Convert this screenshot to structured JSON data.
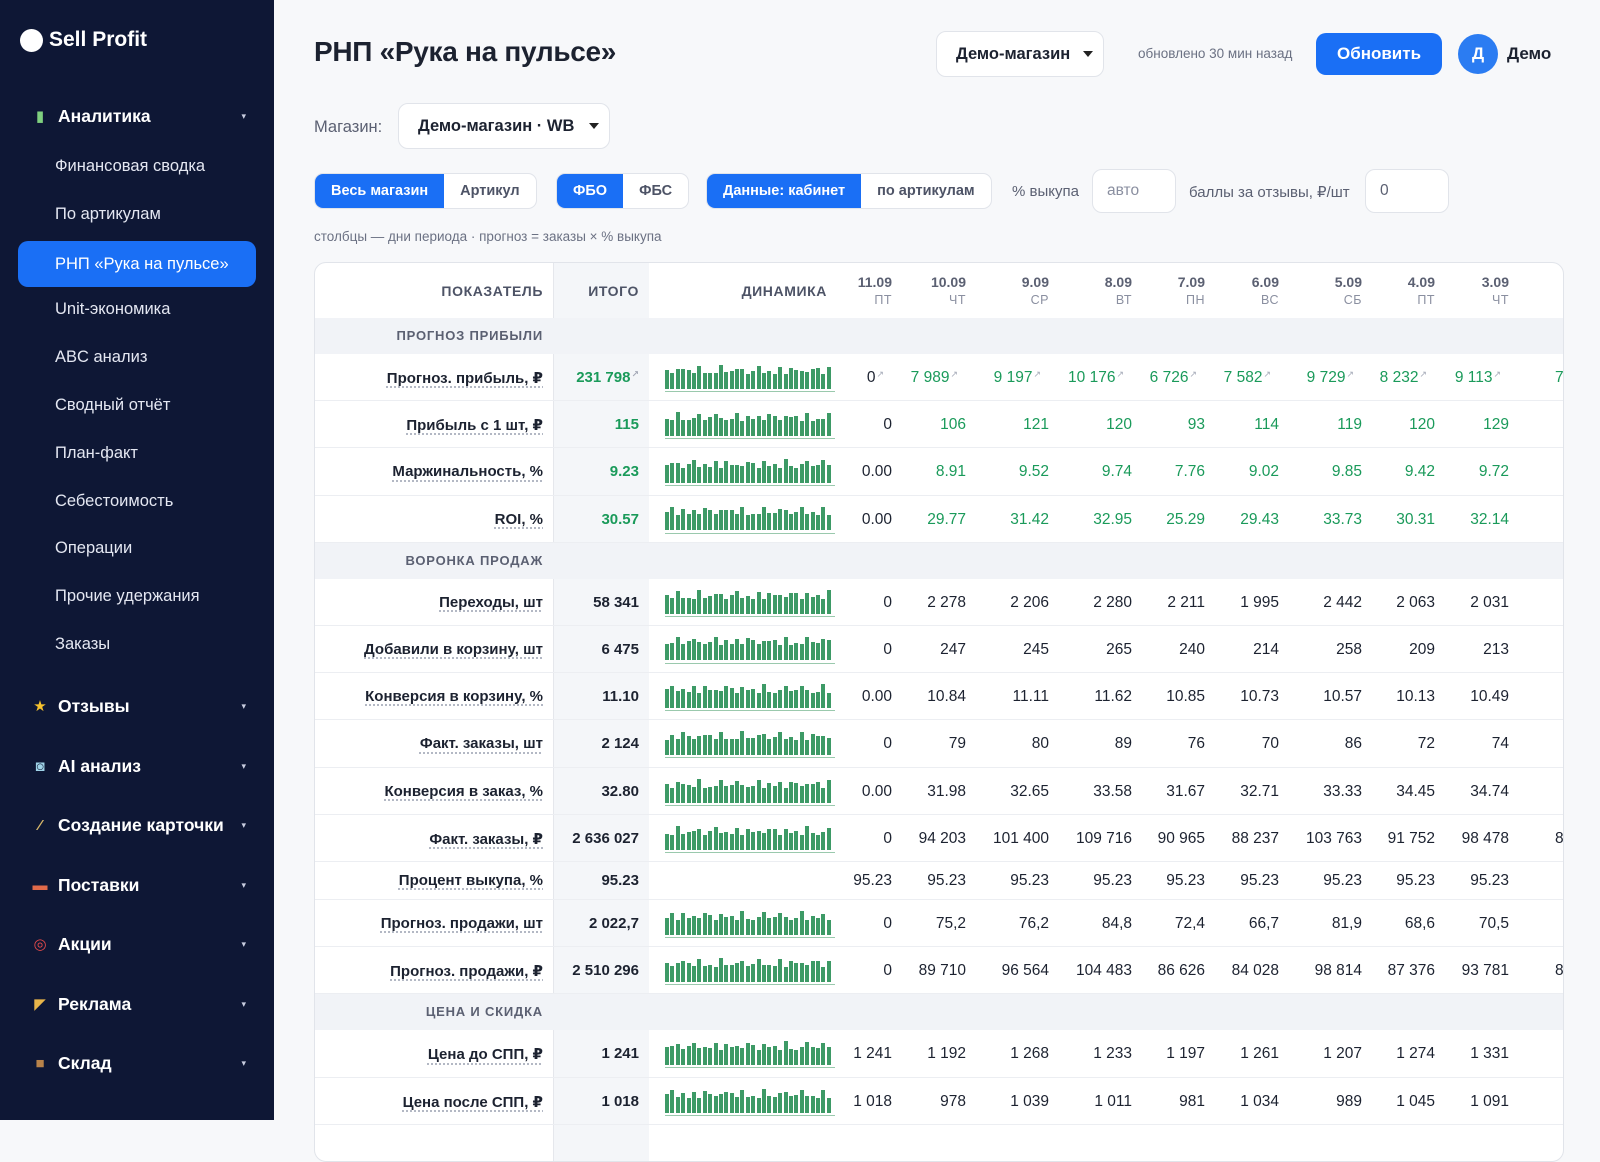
{
  "app": {
    "logo": "Sell Profit"
  },
  "sidebar": {
    "groups": [
      {
        "label": "Аналитика",
        "icon": "chart-icon",
        "expanded": true
      },
      {
        "label": "Отзывы",
        "icon": "star-icon"
      },
      {
        "label": "AI анализ",
        "icon": "robot-icon"
      },
      {
        "label": "Создание карточки",
        "icon": "magic-wand-icon"
      },
      {
        "label": "Поставки",
        "icon": "truck-icon"
      },
      {
        "label": "Акции",
        "icon": "target-icon"
      },
      {
        "label": "Реклама",
        "icon": "megaphone-icon"
      },
      {
        "label": "Склад",
        "icon": "box-icon"
      }
    ],
    "analytics_items": [
      "Финансовая сводка",
      "По артикулам",
      "РНП «Рука на пульсе»",
      "Unit-экономика",
      "ABC анализ",
      "Сводный отчёт",
      "План-факт",
      "Себестоимость",
      "Операции",
      "Прочие удержания",
      "Заказы"
    ],
    "active_item": "РНП «Рука на пульсе»"
  },
  "header": {
    "title": "РНП «Рука на пульсе»",
    "store_select": "Демо-магазин",
    "updated": "обновлено 30 мин назад",
    "refresh_label": "Обновить",
    "avatar_letter": "Д",
    "user_name": "Демо"
  },
  "filters": {
    "store_label": "Магазин:",
    "store_value": "Демо-магазин · WB",
    "scope": [
      "Весь магазин",
      "Артикул"
    ],
    "scope_active": 0,
    "warehouse": [
      "ФБО",
      "ФБС"
    ],
    "warehouse_active": 0,
    "source": [
      "Данные: кабинет",
      "по артикулам"
    ],
    "source_active": 0,
    "buyout_label": "% выкупа",
    "buyout_placeholder": "авто",
    "reviews_label": "баллы за отзывы, ₽/шт",
    "reviews_value": "0",
    "hint": "столбцы — дни периода · прогноз = заказы × % выкупа"
  },
  "table": {
    "headers": {
      "metric": "ПОКАЗАТЕЛЬ",
      "total": "ИТОГО",
      "dynamics": "ДИНАМИКА"
    },
    "days": [
      {
        "date": "11.09",
        "dow": "ПТ"
      },
      {
        "date": "10.09",
        "dow": "ЧТ"
      },
      {
        "date": "9.09",
        "dow": "СР"
      },
      {
        "date": "8.09",
        "dow": "ВТ"
      },
      {
        "date": "7.09",
        "dow": "ПН"
      },
      {
        "date": "6.09",
        "dow": "ВС"
      },
      {
        "date": "5.09",
        "dow": "СБ"
      },
      {
        "date": "4.09",
        "dow": "ПТ"
      },
      {
        "date": "3.09",
        "dow": "ЧТ"
      }
    ],
    "rows": [
      {
        "section": "ПРОГНОЗ ПРИБЫЛИ"
      },
      {
        "name": "Прогноз. прибыль, ₽",
        "total": "231 798",
        "green": true,
        "arrows": true,
        "values": [
          "0",
          "7 989",
          "9 197",
          "10 176",
          "6 726",
          "7 582",
          "9 729",
          "8 232",
          "9 113"
        ],
        "clip": "7"
      },
      {
        "name": "Прибыль с 1 шт, ₽",
        "total": "115",
        "green": true,
        "values": [
          "0",
          "106",
          "121",
          "120",
          "93",
          "114",
          "119",
          "120",
          "129"
        ]
      },
      {
        "name": "Маржинальность, %",
        "total": "9.23",
        "green": true,
        "values": [
          "0.00",
          "8.91",
          "9.52",
          "9.74",
          "7.76",
          "9.02",
          "9.85",
          "9.42",
          "9.72"
        ]
      },
      {
        "name": "ROI, %",
        "total": "30.57",
        "green": true,
        "values": [
          "0.00",
          "29.77",
          "31.42",
          "32.95",
          "25.29",
          "29.43",
          "33.73",
          "30.31",
          "32.14"
        ]
      },
      {
        "section": "ВОРОНКА ПРОДАЖ"
      },
      {
        "name": "Переходы, шт",
        "total": "58 341",
        "values": [
          "0",
          "2 278",
          "2 206",
          "2 280",
          "2 211",
          "1 995",
          "2 442",
          "2 063",
          "2 031"
        ]
      },
      {
        "name": "Добавили в корзину, шт",
        "total": "6 475",
        "values": [
          "0",
          "247",
          "245",
          "265",
          "240",
          "214",
          "258",
          "209",
          "213"
        ]
      },
      {
        "name": "Конверсия в корзину, %",
        "total": "11.10",
        "values": [
          "0.00",
          "10.84",
          "11.11",
          "11.62",
          "10.85",
          "10.73",
          "10.57",
          "10.13",
          "10.49"
        ]
      },
      {
        "name": "Факт. заказы, шт",
        "total": "2 124",
        "values": [
          "0",
          "79",
          "80",
          "89",
          "76",
          "70",
          "86",
          "72",
          "74"
        ]
      },
      {
        "name": "Конверсия в заказ, %",
        "total": "32.80",
        "values": [
          "0.00",
          "31.98",
          "32.65",
          "33.58",
          "31.67",
          "32.71",
          "33.33",
          "34.45",
          "34.74"
        ]
      },
      {
        "name": "Факт. заказы, ₽",
        "total": "2 636 027",
        "values": [
          "0",
          "94 203",
          "101 400",
          "109 716",
          "90 965",
          "88 237",
          "103 763",
          "91 752",
          "98 478"
        ],
        "clip": "8"
      },
      {
        "name": "Процент выкупа, %",
        "total": "95.23",
        "nospark": true,
        "values": [
          "95.23",
          "95.23",
          "95.23",
          "95.23",
          "95.23",
          "95.23",
          "95.23",
          "95.23",
          "95.23"
        ]
      },
      {
        "name": "Прогноз. продажи, шт",
        "total": "2 022,7",
        "values": [
          "0",
          "75,2",
          "76,2",
          "84,8",
          "72,4",
          "66,7",
          "81,9",
          "68,6",
          "70,5"
        ]
      },
      {
        "name": "Прогноз. продажи, ₽",
        "total": "2 510 296",
        "values": [
          "0",
          "89 710",
          "96 564",
          "104 483",
          "86 626",
          "84 028",
          "98 814",
          "87 376",
          "93 781"
        ],
        "clip": "8"
      },
      {
        "section": "ЦЕНА И СКИДКА"
      },
      {
        "name": "Цена до СПП, ₽",
        "total": "1 241",
        "values": [
          "1 241",
          "1 192",
          "1 268",
          "1 233",
          "1 197",
          "1 261",
          "1 207",
          "1 274",
          "1 331"
        ]
      },
      {
        "name": "Цена после СПП, ₽",
        "total": "1 018",
        "values": [
          "1 018",
          "978",
          "1 039",
          "1 011",
          "981",
          "1 034",
          "989",
          "1 045",
          "1 091"
        ]
      }
    ]
  },
  "colors": {
    "accent": "#1a6ff5",
    "sidebar": "#0e1735",
    "positive": "#1a9a5a",
    "spark": "#3d9a66"
  }
}
